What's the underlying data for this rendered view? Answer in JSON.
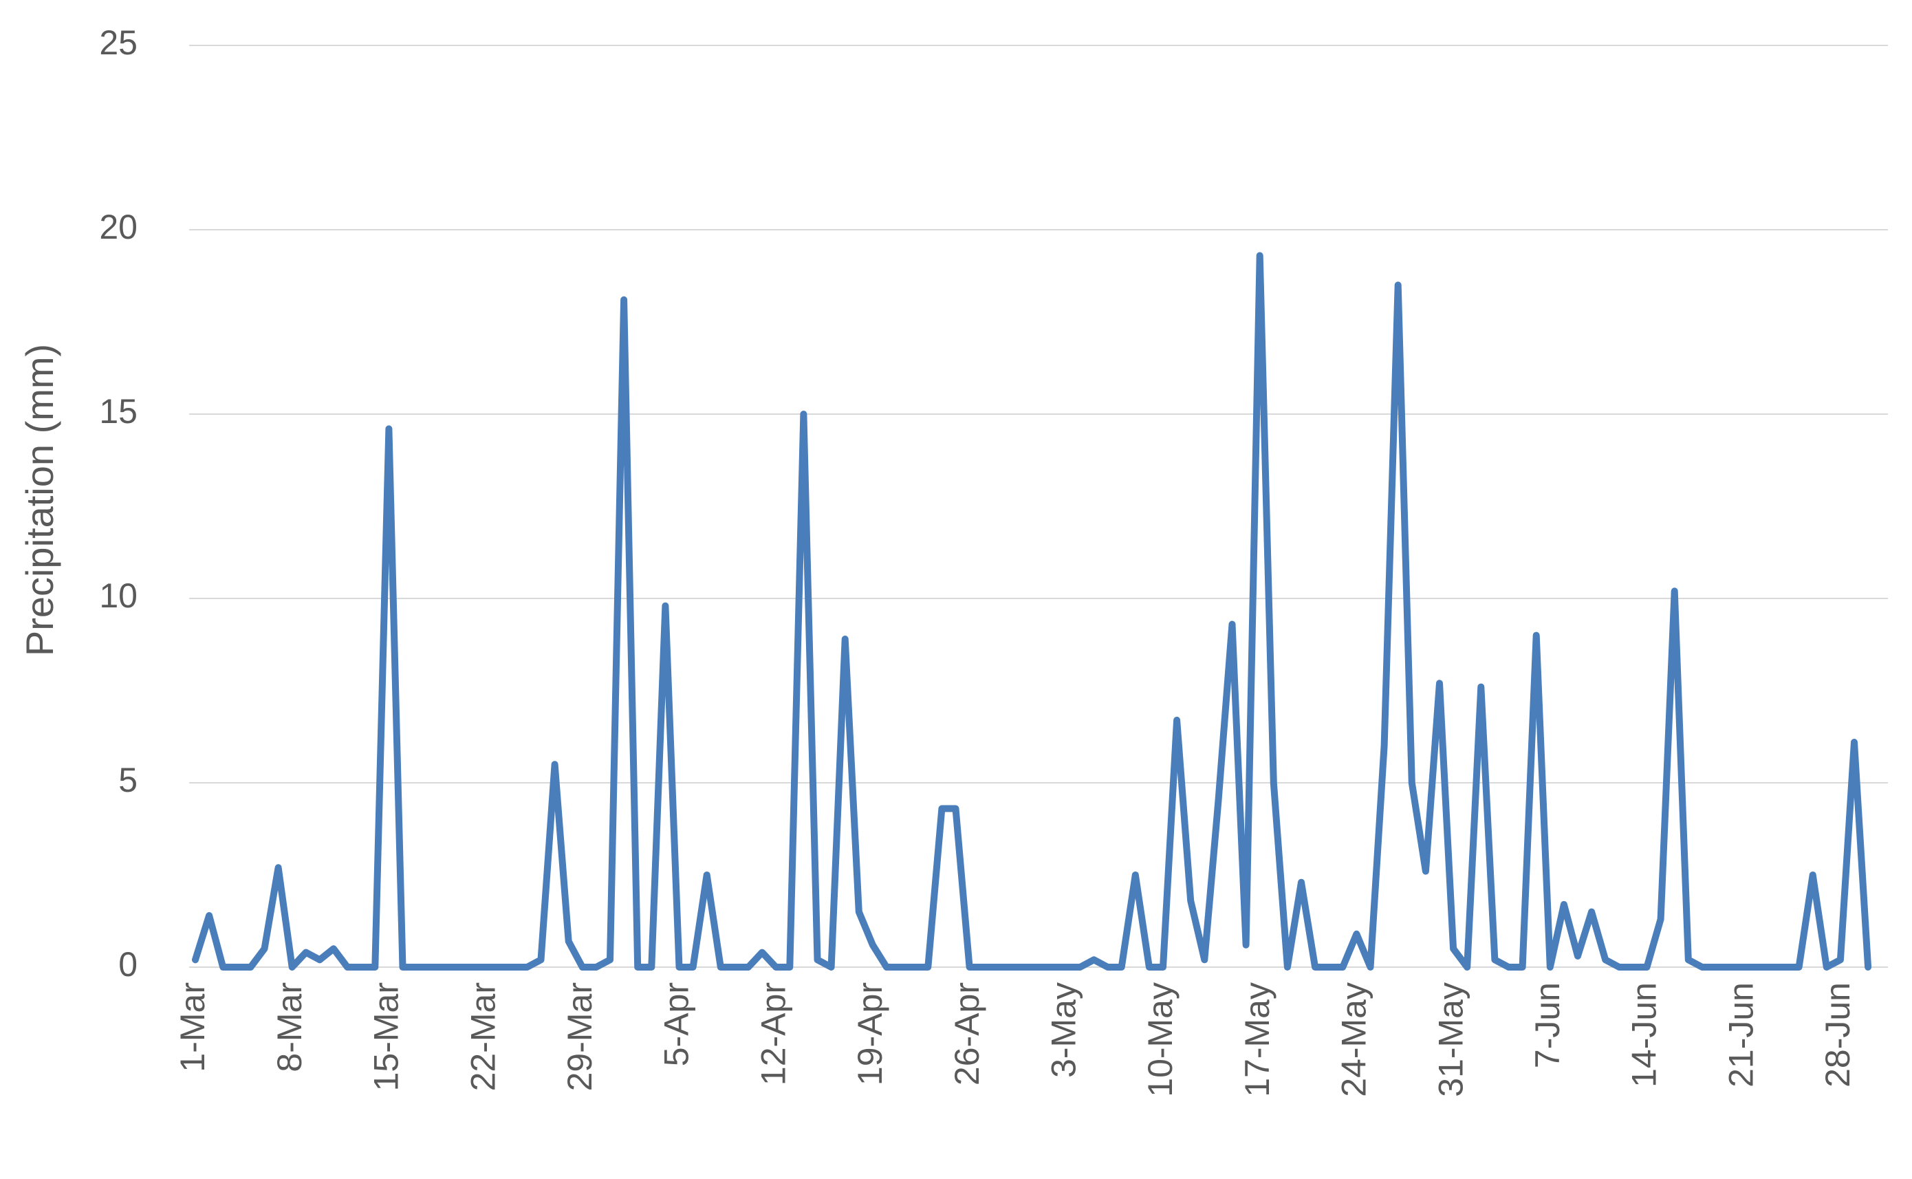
{
  "chart_data": {
    "type": "line",
    "ylabel": "Precipitation (mm)",
    "categories": [
      "1-Mar",
      null,
      null,
      null,
      null,
      null,
      null,
      "8-Mar",
      null,
      null,
      null,
      null,
      null,
      null,
      "15-Mar",
      null,
      null,
      null,
      null,
      null,
      null,
      "22-Mar",
      null,
      null,
      null,
      null,
      null,
      null,
      "29-Mar",
      null,
      null,
      null,
      null,
      null,
      null,
      "5-Apr",
      null,
      null,
      null,
      null,
      null,
      null,
      "12-Apr",
      null,
      null,
      null,
      null,
      null,
      null,
      "19-Apr",
      null,
      null,
      null,
      null,
      null,
      null,
      "26-Apr",
      null,
      null,
      null,
      null,
      null,
      null,
      "3-May",
      null,
      null,
      null,
      null,
      null,
      null,
      "10-May",
      null,
      null,
      null,
      null,
      null,
      null,
      "17-May",
      null,
      null,
      null,
      null,
      null,
      null,
      "24-May",
      null,
      null,
      null,
      null,
      null,
      null,
      "31-May",
      null,
      null,
      null,
      null,
      null,
      null,
      "7-Jun",
      null,
      null,
      null,
      null,
      null,
      null,
      "14-Jun",
      null,
      null,
      null,
      null,
      null,
      null,
      "21-Jun",
      null,
      null,
      null,
      null,
      null,
      null,
      "28-Jun",
      null,
      null
    ],
    "values": [
      0.2,
      1.4,
      0,
      0,
      0,
      0.5,
      2.7,
      0,
      0.4,
      0.2,
      0.5,
      0,
      0,
      0,
      14.6,
      0,
      0,
      0,
      0,
      0,
      0,
      0,
      0,
      0,
      0,
      0.2,
      5.5,
      0.7,
      0,
      0,
      0.2,
      18.1,
      0,
      0,
      9.8,
      0,
      0,
      2.5,
      0,
      0,
      0,
      0.4,
      0,
      0,
      15,
      0.2,
      0,
      8.9,
      1.5,
      0.6,
      0,
      0,
      0,
      0,
      4.3,
      4.3,
      0,
      0,
      0,
      0,
      0,
      0,
      0,
      0,
      0,
      0.2,
      0,
      0,
      2.5,
      0,
      0,
      6.7,
      1.8,
      0.2,
      4.5,
      9.3,
      0.6,
      19.3,
      5,
      0,
      2.3,
      0,
      0,
      0,
      0.9,
      0,
      6,
      18.5,
      5,
      2.6,
      7.7,
      0.5,
      0,
      7.6,
      0.2,
      0,
      0,
      9,
      0,
      1.7,
      0.3,
      1.5,
      0.2,
      0,
      0,
      0,
      1.3,
      10.2,
      0.2,
      0,
      0,
      0,
      0,
      0,
      0,
      0,
      0,
      2.5,
      0,
      0.2,
      6.1,
      0
    ],
    "color": "#4a7ebb",
    "ylim": [
      0,
      25
    ],
    "yticks": [
      0,
      5,
      10,
      15,
      20,
      25
    ],
    "grid": true
  }
}
